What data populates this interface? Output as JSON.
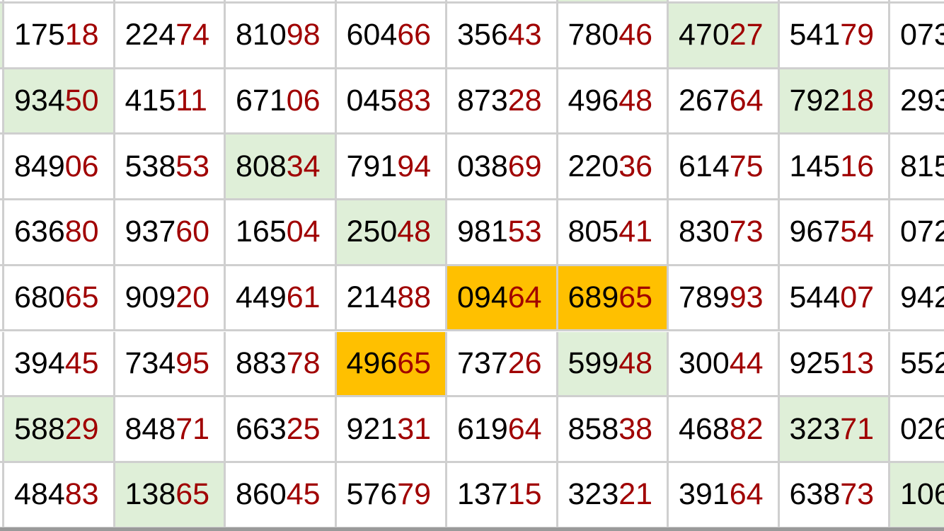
{
  "colors": {
    "head_digits": "#000000",
    "tail_digits": "#a00000",
    "green_highlight": "#dfefd8",
    "orange_highlight": "#ffc000",
    "grid_line": "#cfcfcf"
  },
  "top_partial_row": [
    null,
    null,
    null,
    null,
    null,
    "green",
    null,
    null,
    null
  ],
  "rows": [
    [
      {
        "t": "17518"
      },
      {
        "t": "22474"
      },
      {
        "t": "81098"
      },
      {
        "t": "60466"
      },
      {
        "t": "35643"
      },
      {
        "t": "78046"
      },
      {
        "t": "47027",
        "h": "green"
      },
      {
        "t": "54179"
      },
      {
        "t": "073"
      }
    ],
    [
      {
        "t": "93450",
        "h": "green"
      },
      {
        "t": "41511"
      },
      {
        "t": "67106"
      },
      {
        "t": "04583"
      },
      {
        "t": "87328"
      },
      {
        "t": "49648"
      },
      {
        "t": "26764"
      },
      {
        "t": "79218",
        "h": "green"
      },
      {
        "t": "293"
      }
    ],
    [
      {
        "t": "84906"
      },
      {
        "t": "53853"
      },
      {
        "t": "80834",
        "h": "green"
      },
      {
        "t": "79194"
      },
      {
        "t": "03869"
      },
      {
        "t": "22036"
      },
      {
        "t": "61475"
      },
      {
        "t": "14516"
      },
      {
        "t": "815"
      }
    ],
    [
      {
        "t": "63680"
      },
      {
        "t": "93760"
      },
      {
        "t": "16504"
      },
      {
        "t": "25048",
        "h": "green"
      },
      {
        "t": "98153"
      },
      {
        "t": "80541"
      },
      {
        "t": "83073"
      },
      {
        "t": "96754"
      },
      {
        "t": "072"
      }
    ],
    [
      {
        "t": "68065"
      },
      {
        "t": "90920"
      },
      {
        "t": "44961"
      },
      {
        "t": "21488"
      },
      {
        "t": "09464",
        "h": "orange"
      },
      {
        "t": "68965",
        "h": "orange"
      },
      {
        "t": "78993"
      },
      {
        "t": "54407"
      },
      {
        "t": "942"
      }
    ],
    [
      {
        "t": "39445"
      },
      {
        "t": "73495"
      },
      {
        "t": "88378"
      },
      {
        "t": "49665",
        "h": "orange"
      },
      {
        "t": "73726"
      },
      {
        "t": "59948",
        "h": "green"
      },
      {
        "t": "30044"
      },
      {
        "t": "92513"
      },
      {
        "t": "552"
      }
    ],
    [
      {
        "t": "58829",
        "h": "green"
      },
      {
        "t": "84871"
      },
      {
        "t": "66325"
      },
      {
        "t": "92131"
      },
      {
        "t": "61964"
      },
      {
        "t": "85838"
      },
      {
        "t": "46882"
      },
      {
        "t": "32371",
        "h": "green"
      },
      {
        "t": "026"
      }
    ],
    [
      {
        "t": "48483"
      },
      {
        "t": "13865",
        "h": "green"
      },
      {
        "t": "86045"
      },
      {
        "t": "57679"
      },
      {
        "t": "13715"
      },
      {
        "t": "32321"
      },
      {
        "t": "39164"
      },
      {
        "t": "63873"
      },
      {
        "t": "106",
        "h": "green"
      }
    ]
  ]
}
